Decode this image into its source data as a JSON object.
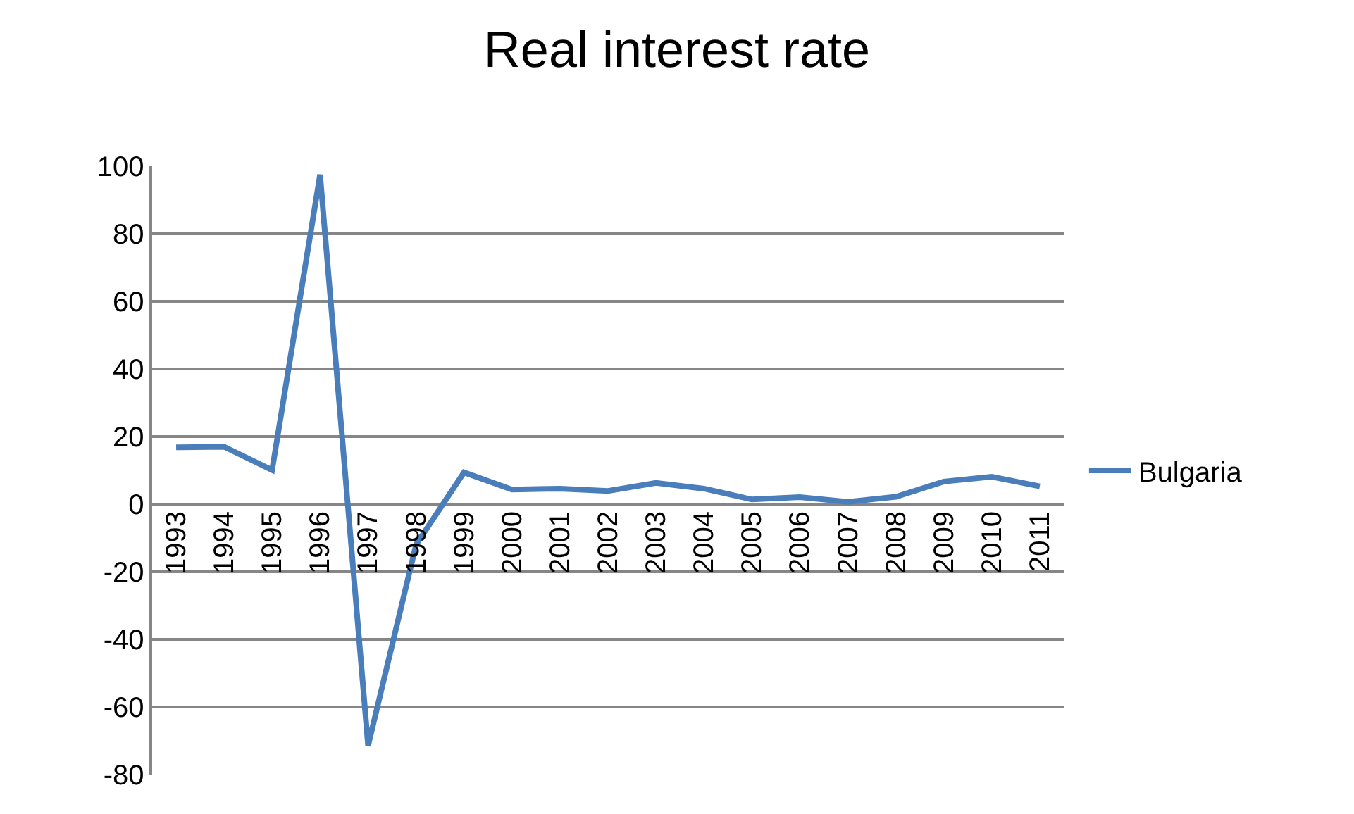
{
  "chart_data": {
    "type": "line",
    "title": "Real interest rate",
    "categories": [
      "1993",
      "1994",
      "1995",
      "1996",
      "1997",
      "1998",
      "1999",
      "2000",
      "2001",
      "2002",
      "2003",
      "2004",
      "2005",
      "2006",
      "2007",
      "2008",
      "2009",
      "2010",
      "2011"
    ],
    "series": [
      {
        "name": "Bulgaria",
        "color": "#4a7ebb",
        "values": [
          16.8,
          17,
          10.1,
          97.5,
          -71.5,
          -12,
          9.4,
          4.3,
          4.6,
          3.9,
          6.3,
          4.6,
          1.4,
          2.1,
          0.7,
          2.2,
          6.7,
          8.1,
          5.3
        ]
      }
    ],
    "ylim": [
      -80,
      100
    ],
    "yticks": [
      -80,
      -60,
      -40,
      -20,
      0,
      20,
      40,
      60,
      80,
      100
    ],
    "grid": "y",
    "legend": "right",
    "marker": "none",
    "line_style": "solid"
  }
}
